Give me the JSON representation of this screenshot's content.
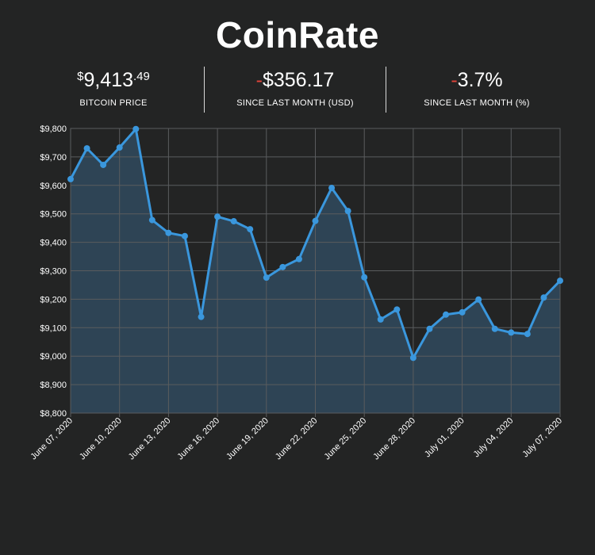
{
  "header": {
    "title": "CoinRate"
  },
  "stats": {
    "price": {
      "currency": "$",
      "whole": "9,413",
      "cents": ".49",
      "label": "BITCOIN PRICE"
    },
    "change_usd": {
      "sign": "-",
      "value": "$356.17",
      "label": "SINCE LAST MONTH (USD)"
    },
    "change_pct": {
      "sign": "-",
      "value": "3.7%",
      "label": "SINCE LAST MONTH (%)"
    }
  },
  "colors": {
    "background": "#232424",
    "line": "#3a97dd",
    "area": "#2f4759",
    "negative": "#e2443a",
    "grid": "#5a5c5e"
  },
  "chart_data": {
    "type": "area",
    "title": "",
    "xlabel": "",
    "ylabel": "",
    "ylim": [
      8800,
      9800
    ],
    "yticks": [
      8800,
      8900,
      9000,
      9100,
      9200,
      9300,
      9400,
      9500,
      9600,
      9700,
      9800
    ],
    "ytick_labels": [
      "$8,800",
      "$8,900",
      "$9,000",
      "$9,100",
      "$9,200",
      "$9,300",
      "$9,400",
      "$9,500",
      "$9,600",
      "$9,700",
      "$9,800"
    ],
    "xtick_labels": [
      "June 07, 2020",
      "June 10, 2020",
      "June 13, 2020",
      "June 16, 2020",
      "June 19, 2020",
      "June 22, 2020",
      "June 25, 2020",
      "June 28, 2020",
      "July 01, 2020",
      "July 04, 2020",
      "July 07, 2020"
    ],
    "grid": true,
    "series": [
      {
        "dates": [
          "2020-06-07",
          "2020-06-08",
          "2020-06-09",
          "2020-06-10",
          "2020-06-11",
          "2020-06-12",
          "2020-06-13",
          "2020-06-14",
          "2020-06-15",
          "2020-06-16",
          "2020-06-17",
          "2020-06-18",
          "2020-06-19",
          "2020-06-20",
          "2020-06-21",
          "2020-06-22",
          "2020-06-23",
          "2020-06-24",
          "2020-06-25",
          "2020-06-26",
          "2020-06-27",
          "2020-06-28",
          "2020-06-29",
          "2020-06-30",
          "2020-07-01",
          "2020-07-02",
          "2020-07-03",
          "2020-07-04",
          "2020-07-05",
          "2020-07-06",
          "2020-07-07"
        ],
        "values": [
          9622,
          9730,
          9672,
          9733,
          9798,
          9478,
          9433,
          9422,
          9138,
          9490,
          9474,
          9446,
          9276,
          9313,
          9341,
          9475,
          9591,
          9510,
          9277,
          9129,
          9164,
          8994,
          9096,
          9146,
          9154,
          9199,
          9096,
          9083,
          9078,
          9206,
          9265
        ]
      }
    ]
  }
}
